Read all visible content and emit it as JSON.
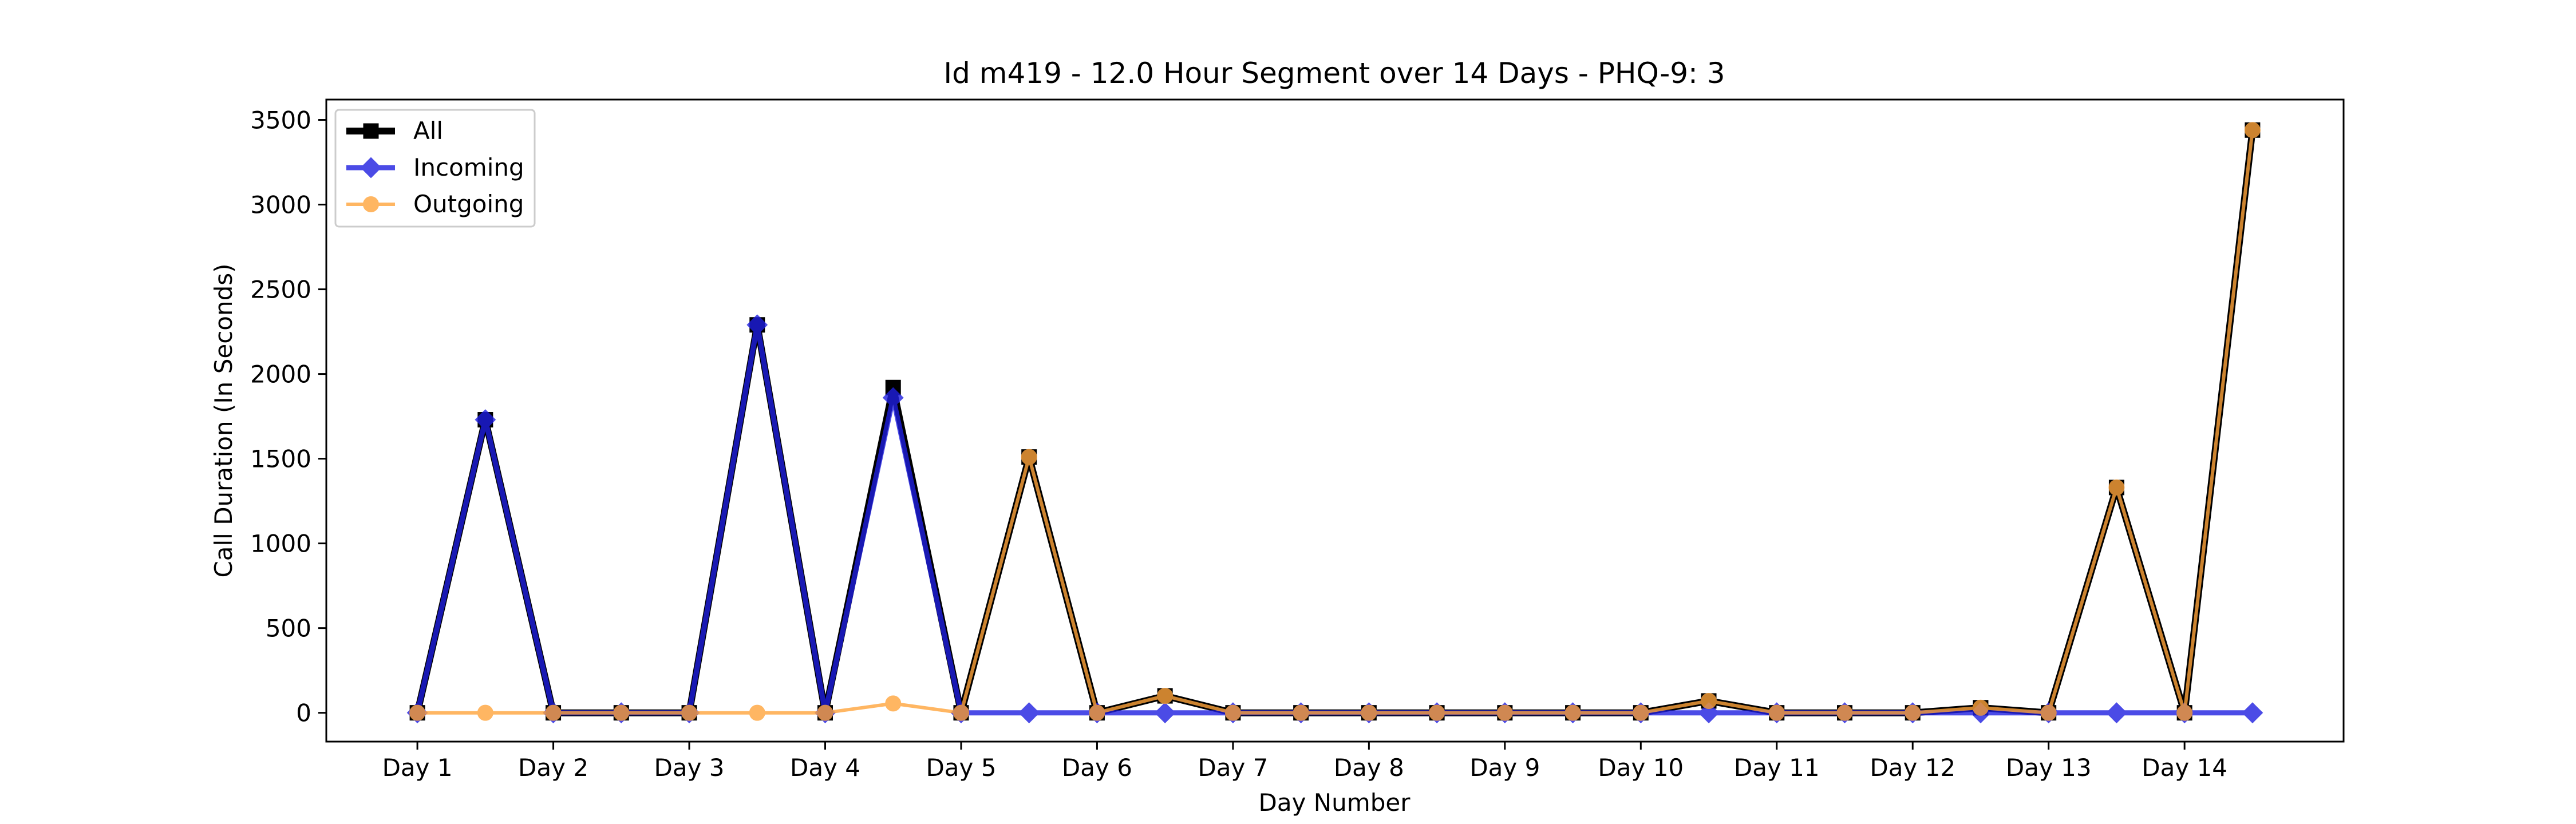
{
  "chart_data": {
    "type": "line",
    "title": "Id m419 - 12.0 Hour Segment over 14 Days - PHQ-9: 3",
    "xlabel": "Day Number",
    "ylabel": "Call Duration (In Seconds)",
    "x_tick_labels": [
      "Day 1",
      "Day 2",
      "Day 3",
      "Day 4",
      "Day 5",
      "Day 6",
      "Day 7",
      "Day 8",
      "Day 9",
      "Day 10",
      "Day 11",
      "Day 12",
      "Day 13",
      "Day 14"
    ],
    "y_ticks": [
      0,
      500,
      1000,
      1500,
      2000,
      2500,
      3000,
      3500
    ],
    "ylim": [
      -170,
      3620
    ],
    "xlim": [
      0.33,
      15.17
    ],
    "grid": false,
    "legend_position": "top-left",
    "x": [
      1,
      1.5,
      2,
      2.5,
      3,
      3.5,
      4,
      4.5,
      5,
      5.5,
      6,
      6.5,
      7,
      7.5,
      8,
      8.5,
      9,
      9.5,
      10,
      10.5,
      11,
      11.5,
      12,
      12.5,
      13,
      13.5,
      14,
      14.5
    ],
    "series": [
      {
        "name": "All",
        "color": "#000000",
        "marker": "square",
        "values": [
          0,
          1730,
          0,
          0,
          0,
          2290,
          0,
          1920,
          0,
          1510,
          0,
          100,
          0,
          0,
          0,
          0,
          0,
          0,
          0,
          70,
          0,
          0,
          0,
          30,
          0,
          1330,
          0,
          3440
        ]
      },
      {
        "name": "Incoming",
        "color": "#1f1fe0",
        "marker": "diamond",
        "values": [
          0,
          1730,
          0,
          0,
          0,
          2290,
          0,
          1860,
          0,
          0,
          0,
          0,
          0,
          0,
          0,
          0,
          0,
          0,
          0,
          0,
          0,
          0,
          0,
          0,
          0,
          0,
          0,
          0
        ]
      },
      {
        "name": "Outgoing",
        "color": "#ffa43b",
        "marker": "circle",
        "values": [
          0,
          0,
          0,
          0,
          0,
          0,
          0,
          55,
          0,
          1510,
          0,
          100,
          0,
          0,
          0,
          0,
          0,
          0,
          0,
          70,
          0,
          0,
          0,
          30,
          0,
          1330,
          0,
          3440
        ]
      }
    ]
  }
}
